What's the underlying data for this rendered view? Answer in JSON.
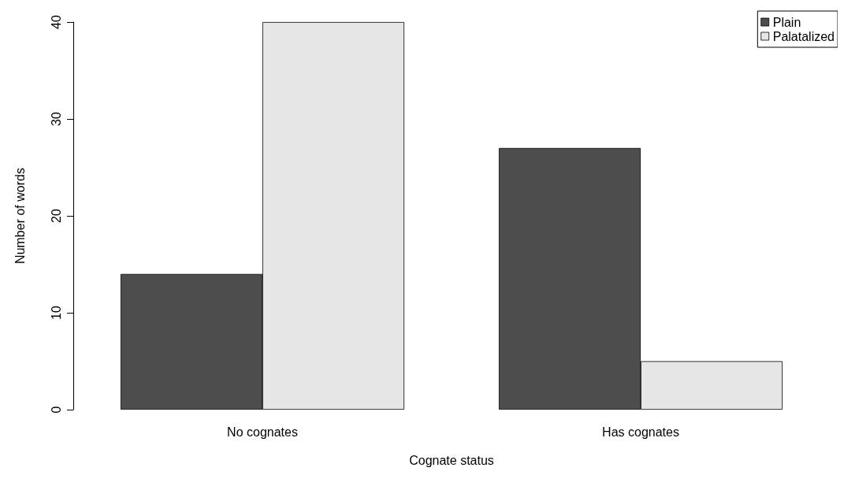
{
  "chart_data": {
    "type": "bar",
    "xlabel": "Cognate status",
    "ylabel": "Number of words",
    "categories": [
      "No cognates",
      "Has cognates"
    ],
    "series": [
      {
        "name": "Plain",
        "color": "#4d4d4d",
        "values": [
          14,
          27
        ]
      },
      {
        "name": "Palatalized",
        "color": "#e6e6e6",
        "values": [
          40,
          5
        ]
      }
    ],
    "ylim": [
      0,
      40
    ],
    "yticks": [
      0,
      10,
      20,
      30,
      40
    ],
    "grid": false,
    "legend": "top right"
  }
}
